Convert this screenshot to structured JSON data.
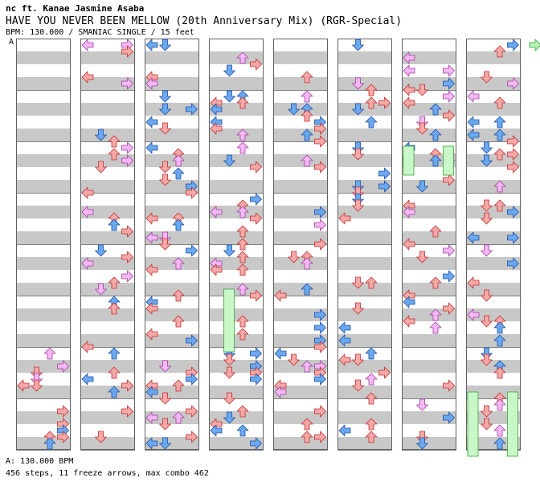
{
  "header": {
    "artist": "nc ft. Kanae Jasmine Asaba",
    "title": "HAVE YOU NEVER BEEN MELLOW (20th Anniversary Mix) (RGR-Special)",
    "info": "BPM: 130.000 / SMANIAC SINGLE / 15 feet",
    "bpm_marker": "A"
  },
  "footer": {
    "bpm_line": "A: 130.000 BPM",
    "stats": "456 steps, 11 freeze arrows, max combo 462"
  },
  "colors": {
    "red": "#f4a8a8",
    "blue": "#6aa8f0",
    "pink": "#f4b8f4",
    "green": "#b8f4b8",
    "freeze": "#c8f8c8"
  },
  "icons": {
    "L": "left-arrow-icon",
    "D": "down-arrow-icon",
    "U": "up-arrow-icon",
    "R": "right-arrow-icon"
  }
}
